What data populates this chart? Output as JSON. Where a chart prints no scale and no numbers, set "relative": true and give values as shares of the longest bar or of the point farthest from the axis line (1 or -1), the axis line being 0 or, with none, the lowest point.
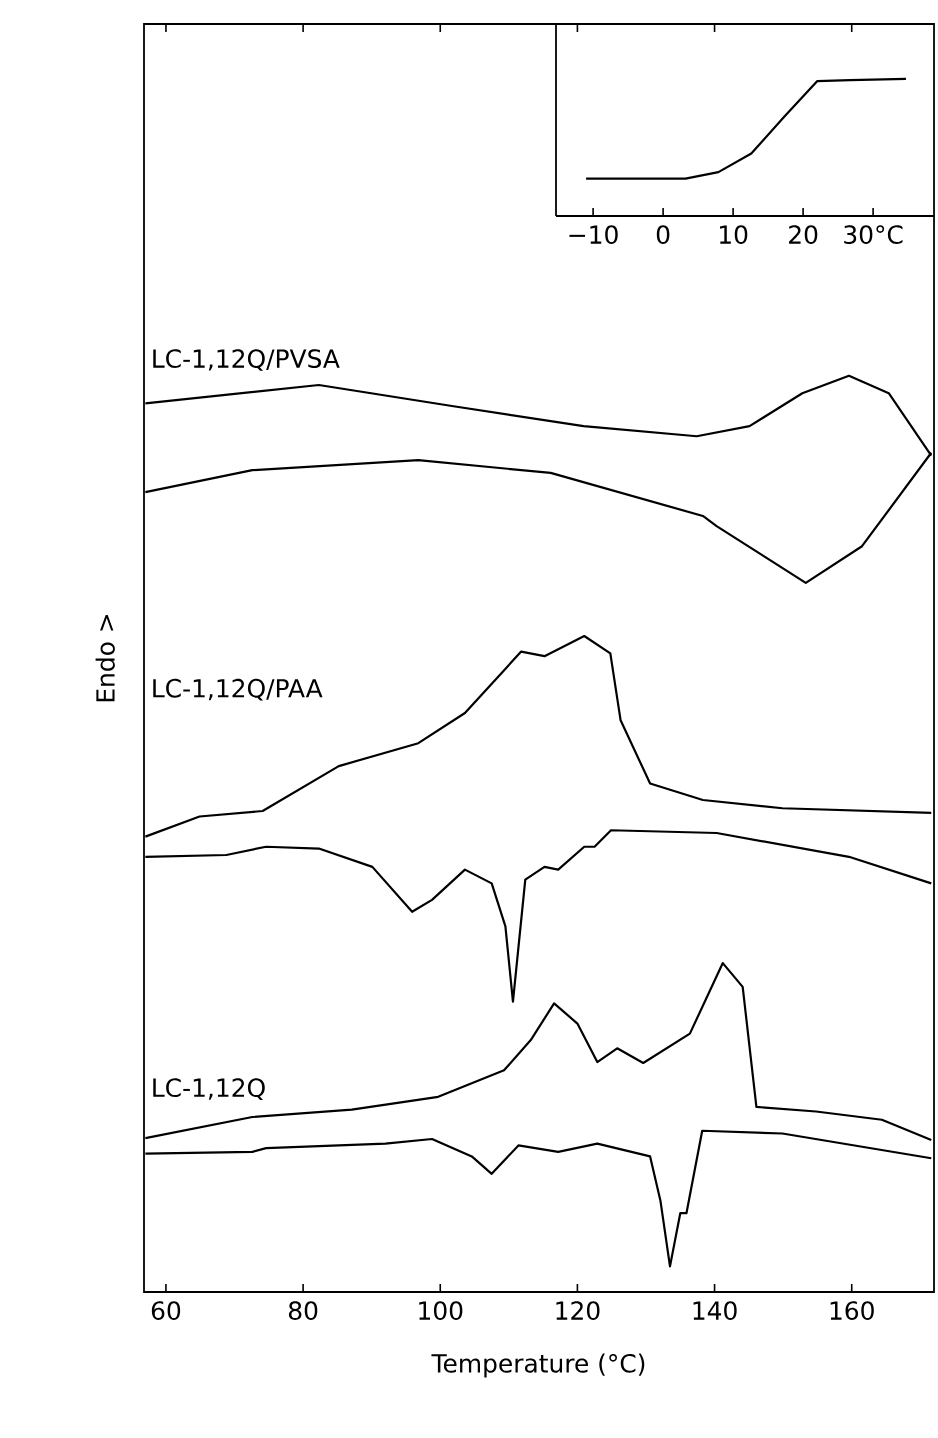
{
  "chart_data": [
    {
      "type": "line",
      "relative": true,
      "xlabel": "Temperature (°C)",
      "ylabel": "Endo >",
      "xlim": [
        56.8,
        172
      ],
      "xticks": [
        60,
        80,
        100,
        120,
        140,
        160
      ],
      "tick_labels": "x",
      "annotations": [
        "LC-1,12Q/PVSA",
        "LC-1,12Q/PAA",
        "LC-1,12Q"
      ],
      "series": [
        {
          "color": "#000000",
          "x": [
            57.0,
            82.3,
            101.7,
            120.9,
            137.4,
            145.1,
            152.8,
            159.6,
            165.4,
            171.6
          ],
          "values": [
            0.97,
            0.99,
            0.967,
            0.945,
            0.934,
            0.945,
            0.981,
            1.0,
            0.981,
            0.913
          ]
        },
        {
          "color": "#000000",
          "x": [
            57.0,
            72.6,
            96.8,
            116.1,
            138.3,
            140.3,
            153.3,
            161.5,
            171.6
          ],
          "values": [
            0.873,
            0.897,
            0.908,
            0.894,
            0.847,
            0.836,
            0.774,
            0.814,
            0.916
          ]
        },
        {
          "color": "#000000",
          "x": [
            57.0,
            64.9,
            74.1,
            85.2,
            96.8,
            103.6,
            111.8,
            115.2,
            121.0,
            124.8,
            126.3,
            130.6,
            138.3,
            149.9,
            171.6
          ],
          "values": [
            0.497,
            0.519,
            0.525,
            0.574,
            0.599,
            0.632,
            0.699,
            0.694,
            0.716,
            0.697,
            0.624,
            0.555,
            0.537,
            0.528,
            0.523
          ]
        },
        {
          "color": "#000000",
          "x": [
            57.0,
            68.8,
            74.6,
            82.3,
            90.1,
            95.9,
            98.8,
            103.6,
            107.5,
            109.5,
            110.6,
            112.4,
            115.2,
            117.2,
            121.0,
            122.5,
            124.9,
            140.3,
            159.6,
            171.6
          ],
          "values": [
            0.475,
            0.477,
            0.486,
            0.484,
            0.464,
            0.415,
            0.428,
            0.461,
            0.446,
            0.399,
            0.317,
            0.45,
            0.464,
            0.461,
            0.486,
            0.486,
            0.504,
            0.501,
            0.475,
            0.446
          ]
        },
        {
          "color": "#000000",
          "x": [
            57.0,
            72.6,
            87.1,
            99.7,
            109.3,
            113.2,
            116.6,
            120.0,
            122.9,
            125.8,
            129.6,
            136.4,
            141.2,
            144.1,
            146.1,
            154.8,
            164.4,
            171.6
          ],
          "values": [
            0.168,
            0.191,
            0.199,
            0.213,
            0.242,
            0.275,
            0.315,
            0.293,
            0.251,
            0.266,
            0.25,
            0.282,
            0.359,
            0.333,
            0.202,
            0.197,
            0.188,
            0.166
          ]
        },
        {
          "color": "#000000",
          "x": [
            57.0,
            72.6,
            74.6,
            92.0,
            98.8,
            104.6,
            107.5,
            111.4,
            117.2,
            122.9,
            130.6,
            132.1,
            133.5,
            135.0,
            135.9,
            138.2,
            149.9,
            171.6
          ],
          "values": [
            0.151,
            0.153,
            0.157,
            0.162,
            0.167,
            0.148,
            0.129,
            0.16,
            0.153,
            0.162,
            0.148,
            0.1,
            0.028,
            0.086,
            0.086,
            0.176,
            0.173,
            0.146
          ]
        }
      ]
    },
    {
      "type": "line",
      "relative": true,
      "xlim": [
        -15.3,
        38.7
      ],
      "xticks": [
        {
          "value": -10,
          "label": "−10"
        },
        0,
        10,
        20,
        {
          "value": 30,
          "label": "30°C"
        }
      ],
      "tick_labels": "x",
      "series": [
        {
          "color": "#000000",
          "x": [
            -11.0,
            3.2,
            7.9,
            12.6,
            17.3,
            22.0,
            26.7,
            34.7
          ],
          "values": [
            0.272,
            0.272,
            0.32,
            0.456,
            0.723,
            0.983,
            0.99,
            1.0
          ]
        }
      ]
    }
  ]
}
